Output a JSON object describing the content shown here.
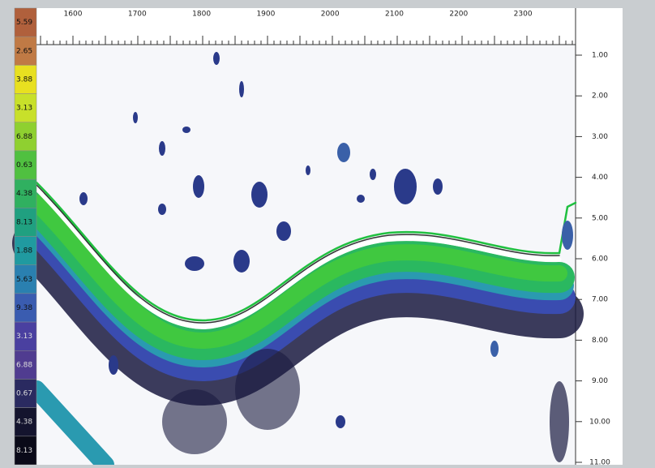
{
  "x_axis": {
    "ticks": [
      "1600",
      "1700",
      "1800",
      "1900",
      "2000",
      "2100",
      "2200",
      "2300"
    ]
  },
  "depth_axis": {
    "ticks": [
      "1.00",
      "2.00",
      "3.00",
      "4.00",
      "5.00",
      "6.00",
      "7.00",
      "8.00",
      "9.00",
      "10.00",
      "11.00"
    ]
  },
  "color_scale": {
    "labels": [
      "5.59",
      "2.65",
      "3.88",
      "3.13",
      "6.88",
      "0.63",
      "4.38",
      "8.13",
      "1.88",
      "5.63",
      "9.38",
      "3.13",
      "6.88",
      "0.67",
      "4.38",
      "8.13"
    ],
    "colors": [
      "#b0603c",
      "#c07a45",
      "#e8e020",
      "#c8e02a",
      "#8fd030",
      "#50c040",
      "#30b060",
      "#20a080",
      "#209aa0",
      "#2a80b0",
      "#3a5cb0",
      "#4a40a0",
      "#503c90",
      "#2a2a60",
      "#14142e",
      "#0a0a18"
    ]
  }
}
